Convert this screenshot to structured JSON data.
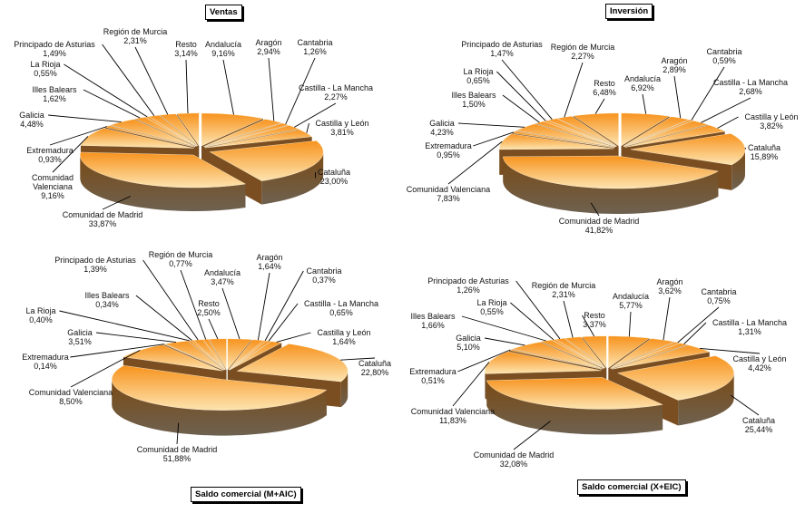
{
  "chart_data": [
    {
      "type": "pie",
      "title": "Ventas",
      "three_d": true,
      "categories": [
        "Andalucía",
        "Aragón",
        "Cantabria",
        "Castilla - La Mancha",
        "Castilla y León",
        "Cataluña",
        "Comunidad de Madrid",
        "Comunidad Valenciana",
        "Extremadura",
        "Galicia",
        "Illes Balears",
        "La Rioja",
        "Principado de Asturias",
        "Región de Murcia",
        "Resto"
      ],
      "values": [
        9.16,
        2.94,
        1.26,
        2.27,
        3.81,
        23.0,
        33.87,
        9.16,
        0.93,
        4.48,
        1.62,
        0.55,
        1.49,
        2.31,
        3.14
      ],
      "unit": "%"
    },
    {
      "type": "pie",
      "title": "Inversión",
      "three_d": true,
      "categories": [
        "Andalucía",
        "Aragón",
        "Cantabria",
        "Castilla - La Mancha",
        "Castilla y León",
        "Cataluña",
        "Comunidad de Madrid",
        "Comunidad Valenciana",
        "Extremadura",
        "Galicia",
        "Illes Balears",
        "La Rioja",
        "Principado de Asturias",
        "Región de Murcia",
        "Resto"
      ],
      "values": [
        6.92,
        2.89,
        0.59,
        2.68,
        3.82,
        15.89,
        41.82,
        7.83,
        0.95,
        4.23,
        1.5,
        0.65,
        1.47,
        2.27,
        6.48
      ],
      "unit": "%"
    },
    {
      "type": "pie",
      "title": "Saldo comercial (M+AIC)",
      "three_d": true,
      "categories": [
        "Andalucía",
        "Aragón",
        "Cantabria",
        "Castilla - La Mancha",
        "Castilla y León",
        "Cataluña",
        "Comunidad de Madrid",
        "Comunidad Valenciana",
        "Extremadura",
        "Galicia",
        "La Rioja",
        "Illes Balears",
        "Principado de Asturias",
        "Región de Murcia",
        "Resto"
      ],
      "values": [
        3.47,
        1.64,
        0.37,
        0.65,
        1.64,
        22.8,
        51.88,
        8.5,
        0.14,
        3.51,
        0.4,
        0.34,
        1.39,
        0.77,
        2.5
      ],
      "unit": "%"
    },
    {
      "type": "pie",
      "title": "Saldo comercial (X+EIC)",
      "three_d": true,
      "categories": [
        "Andalucía",
        "Aragón",
        "Cantabria",
        "Castilla - La Mancha",
        "Castilla y León",
        "Cataluña",
        "Comunidad de Madrid",
        "Comunidad Valenciana",
        "Extremadura",
        "Galicia",
        "Illes Balears",
        "La Rioja",
        "Principado de Asturias",
        "Región de Murcia",
        "Resto"
      ],
      "values": [
        5.77,
        3.62,
        0.75,
        1.31,
        4.42,
        25.44,
        32.08,
        11.83,
        0.51,
        5.1,
        1.66,
        0.55,
        1.26,
        2.31,
        3.37
      ],
      "unit": "%"
    }
  ],
  "colors": {
    "slice_top_dark": "#f7931e",
    "slice_top_light": "#fde4b0",
    "slice_side_dark": "#7a4a14",
    "slice_side_light": "#6e6150"
  }
}
